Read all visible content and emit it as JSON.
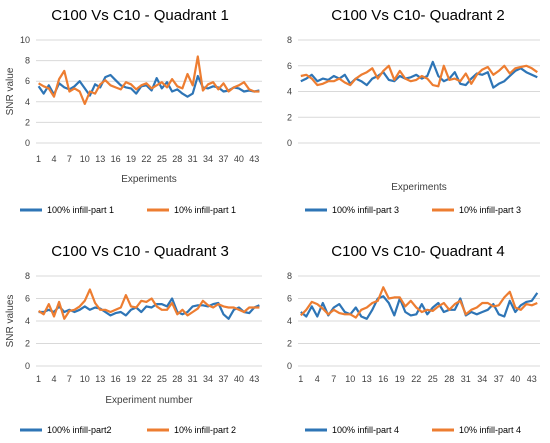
{
  "colors": {
    "blue": "#2E75B6",
    "orange": "#ED7D31",
    "grid": "#D9D9D9"
  },
  "chart_data": [
    {
      "type": "line",
      "title": "C100 Vs C10 - Quadrant 1",
      "xlabel": "Experiments",
      "ylabel": "SNR value",
      "ylim": [
        0,
        10
      ],
      "yticks": [
        0,
        2,
        4,
        6,
        8,
        10
      ],
      "x": [
        1,
        2,
        3,
        4,
        5,
        6,
        7,
        8,
        9,
        10,
        11,
        12,
        13,
        14,
        15,
        16,
        17,
        18,
        19,
        20,
        21,
        22,
        23,
        24,
        25,
        26,
        27,
        28,
        29,
        30,
        31,
        32,
        33,
        34,
        35,
        36,
        37,
        38,
        39,
        40,
        41,
        42,
        43,
        44
      ],
      "xticks": [
        1,
        4,
        7,
        10,
        13,
        16,
        19,
        22,
        25,
        28,
        31,
        34,
        37,
        40,
        43
      ],
      "legend_position": "bottom",
      "series": [
        {
          "name": "100% infill-part 1",
          "color": "#2E75B6",
          "values": [
            5.5,
            4.8,
            5.6,
            4.7,
            5.8,
            5.4,
            5.2,
            5.5,
            6.0,
            5.3,
            4.6,
            5.7,
            5.4,
            6.4,
            6.6,
            6.1,
            5.6,
            5.4,
            5.3,
            4.8,
            5.5,
            5.6,
            5.1,
            6.3,
            5.3,
            5.9,
            5.0,
            5.2,
            4.8,
            4.5,
            4.8,
            6.5,
            5.4,
            5.3,
            5.5,
            5.4,
            5.0,
            5.1,
            5.4,
            5.3,
            5.0,
            5.1,
            5.0,
            5.1
          ]
        },
        {
          "name": "10% infill-part 1",
          "color": "#ED7D31",
          "values": [
            5.8,
            5.5,
            5.3,
            4.5,
            6.2,
            7.0,
            5.0,
            5.3,
            5.0,
            3.8,
            5.0,
            4.8,
            5.7,
            6.1,
            5.6,
            5.4,
            5.2,
            5.9,
            5.7,
            5.2,
            5.6,
            5.8,
            5.3,
            5.6,
            5.9,
            5.4,
            6.2,
            5.5,
            5.3,
            6.7,
            5.6,
            8.4,
            5.1,
            5.7,
            5.9,
            5.2,
            5.8,
            5.0,
            5.4,
            5.6,
            5.9,
            5.2,
            5.0,
            5.0
          ]
        }
      ]
    },
    {
      "type": "line",
      "title": "C100 Vs C10- Quadrant 2",
      "xlabel": "Experiments",
      "ylabel": "",
      "ylim": [
        0,
        8
      ],
      "yticks": [
        0,
        2,
        4,
        6,
        8
      ],
      "x": [
        1,
        2,
        3,
        4,
        5,
        6,
        7,
        8,
        9,
        10,
        11,
        12,
        13,
        14,
        15,
        16,
        17,
        18,
        19,
        20,
        21,
        22,
        23,
        24,
        25,
        26,
        27,
        28,
        29,
        30,
        31,
        32,
        33,
        34,
        35,
        36,
        37,
        38,
        39,
        40,
        41,
        42,
        43,
        44
      ],
      "xticks": [],
      "legend_position": "bottom",
      "series": [
        {
          "name": "100% infill-part 3",
          "color": "#2E75B6",
          "values": [
            4.8,
            5.0,
            5.3,
            4.8,
            5.0,
            4.9,
            5.2,
            5.0,
            5.3,
            4.6,
            5.0,
            4.8,
            4.5,
            5.0,
            5.2,
            5.5,
            4.9,
            4.8,
            5.2,
            5.0,
            5.1,
            5.3,
            5.0,
            5.2,
            6.3,
            5.2,
            4.8,
            5.0,
            5.5,
            4.6,
            4.5,
            5.0,
            5.4,
            5.3,
            5.5,
            4.3,
            4.6,
            4.8,
            5.2,
            5.6,
            5.8,
            5.5,
            5.3,
            5.1
          ]
        },
        {
          "name": "10% infill-part 3",
          "color": "#ED7D31",
          "values": [
            5.2,
            5.3,
            5.0,
            4.5,
            4.6,
            4.8,
            4.8,
            5.0,
            4.7,
            4.5,
            5.0,
            5.3,
            5.5,
            5.8,
            5.0,
            5.6,
            6.0,
            4.9,
            5.6,
            5.0,
            4.8,
            4.9,
            5.2,
            5.0,
            4.5,
            4.4,
            6.0,
            4.9,
            5.0,
            4.8,
            5.4,
            4.6,
            5.3,
            5.7,
            5.9,
            5.3,
            5.6,
            6.0,
            5.4,
            5.8,
            5.9,
            6.0,
            5.8,
            5.5
          ]
        }
      ]
    },
    {
      "type": "line",
      "title": "C100 Vs C10 - Quadrant 3",
      "xlabel": "Experiment number",
      "ylabel": "SNR values",
      "ylim": [
        0,
        8
      ],
      "yticks": [
        0,
        2,
        4,
        6,
        8
      ],
      "x": [
        1,
        2,
        3,
        4,
        5,
        6,
        7,
        8,
        9,
        10,
        11,
        12,
        13,
        14,
        15,
        16,
        17,
        18,
        19,
        20,
        21,
        22,
        23,
        24,
        25,
        26,
        27,
        28,
        29,
        30,
        31,
        32,
        33,
        34,
        35,
        36,
        37,
        38,
        39,
        40,
        41,
        42,
        43,
        44
      ],
      "xticks": [
        1,
        4,
        7,
        10,
        13,
        16,
        19,
        22,
        25,
        28,
        31,
        34,
        37,
        40,
        43
      ],
      "legend_position": "bottom",
      "series": [
        {
          "name": "100% infill-part2",
          "color": "#2E75B6",
          "values": [
            4.8,
            4.8,
            5.0,
            4.8,
            5.3,
            4.8,
            5.0,
            4.8,
            5.0,
            5.3,
            5.0,
            5.2,
            5.1,
            4.8,
            4.5,
            4.7,
            4.8,
            4.5,
            5.0,
            5.2,
            4.8,
            5.3,
            5.2,
            5.5,
            5.5,
            5.3,
            6.0,
            4.8,
            4.6,
            4.8,
            5.3,
            5.4,
            5.4,
            5.3,
            5.5,
            5.6,
            4.6,
            4.2,
            5.0,
            5.2,
            4.8,
            4.7,
            5.2,
            5.4
          ]
        },
        {
          "name": "10% infill-part 2",
          "color": "#ED7D31",
          "values": [
            4.9,
            4.6,
            5.5,
            4.4,
            5.7,
            4.2,
            4.9,
            5.0,
            5.3,
            5.8,
            6.8,
            5.6,
            5.0,
            5.0,
            4.8,
            5.0,
            5.2,
            6.3,
            5.3,
            5.2,
            5.8,
            5.7,
            6.0,
            5.3,
            5.0,
            5.0,
            5.6,
            4.6,
            5.0,
            4.5,
            4.8,
            5.1,
            5.8,
            5.4,
            5.2,
            5.5,
            5.3,
            5.2,
            5.2,
            5.0,
            4.8,
            5.2,
            5.2,
            5.2
          ]
        }
      ]
    },
    {
      "type": "line",
      "title": "C100 Vs C10- Quadrant 4",
      "xlabel": "",
      "ylabel": "",
      "ylim": [
        0,
        8
      ],
      "yticks": [
        0,
        2,
        4,
        6,
        8
      ],
      "x": [
        1,
        2,
        3,
        4,
        5,
        6,
        7,
        8,
        9,
        10,
        11,
        12,
        13,
        14,
        15,
        16,
        17,
        18,
        19,
        20,
        21,
        22,
        23,
        24,
        25,
        26,
        27,
        28,
        29,
        30,
        31,
        32,
        33,
        34,
        35,
        36,
        37,
        38,
        39,
        40,
        41,
        42,
        43,
        44
      ],
      "xticks": [
        1,
        4,
        7,
        10,
        13,
        16,
        19,
        22,
        25,
        28,
        31,
        34,
        37,
        40,
        43
      ],
      "legend_position": "bottom",
      "series": [
        {
          "name": "100% infill-part 4",
          "color": "#2E75B6",
          "values": [
            4.8,
            4.4,
            5.3,
            4.4,
            5.6,
            4.5,
            5.2,
            5.5,
            4.8,
            4.6,
            5.2,
            4.4,
            4.2,
            5.0,
            6.0,
            6.2,
            5.6,
            4.5,
            6.0,
            4.8,
            4.5,
            4.6,
            5.5,
            4.6,
            5.2,
            5.6,
            4.8,
            5.0,
            5.0,
            6.0,
            4.5,
            4.8,
            4.6,
            4.8,
            5.0,
            5.5,
            4.6,
            4.4,
            5.8,
            4.8,
            5.4,
            5.7,
            5.8,
            6.5
          ]
        },
        {
          "name": "10% infill-part 4",
          "color": "#ED7D31",
          "values": [
            4.5,
            5.0,
            5.7,
            5.5,
            5.1,
            4.6,
            5.0,
            4.7,
            4.6,
            4.6,
            4.3,
            5.0,
            5.2,
            5.6,
            5.8,
            7.0,
            6.0,
            6.1,
            6.1,
            5.3,
            5.8,
            5.2,
            4.8,
            5.0,
            4.9,
            5.3,
            5.6,
            5.0,
            5.5,
            5.8,
            4.6,
            5.0,
            5.2,
            5.6,
            5.6,
            5.3,
            5.4,
            6.1,
            6.6,
            5.2,
            5.0,
            5.5,
            5.4,
            5.6
          ]
        }
      ]
    }
  ]
}
